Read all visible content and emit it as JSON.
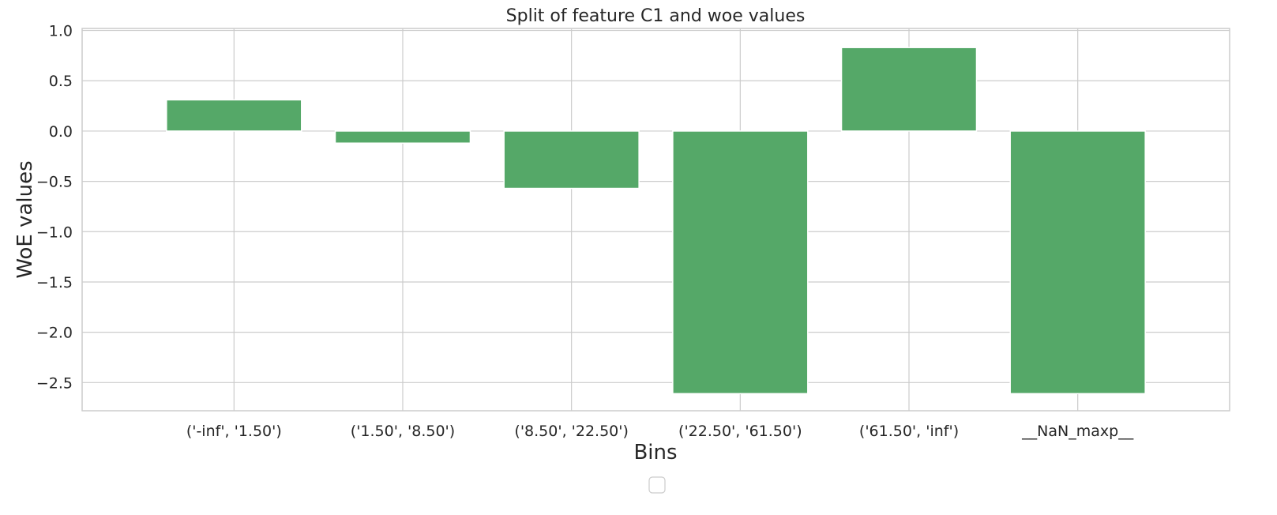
{
  "chart_data": {
    "type": "bar",
    "title": "Split of feature C1 and woe values",
    "xlabel": "Bins",
    "ylabel": "WoE values",
    "categories": [
      "('-inf', '1.50')",
      "('1.50', '8.50')",
      "('8.50', '22.50')",
      "('22.50', '61.50')",
      "('61.50', 'inf')",
      "__NaN_maxp__"
    ],
    "values": [
      0.31,
      -0.12,
      -0.57,
      -2.61,
      0.83,
      -2.61
    ],
    "ylim": [
      -2.78,
      1.02
    ],
    "yticks": [
      1.0,
      0.5,
      0.0,
      -0.5,
      -1.0,
      -1.5,
      -2.0,
      -2.5
    ],
    "ytick_labels": [
      "1.0",
      "0.5",
      "0.0",
      "−0.5",
      "−1.0",
      "−1.5",
      "−2.0",
      "−2.5"
    ],
    "bar_color": "#55a868",
    "grid": true,
    "legend": "bottom-center, empty"
  }
}
